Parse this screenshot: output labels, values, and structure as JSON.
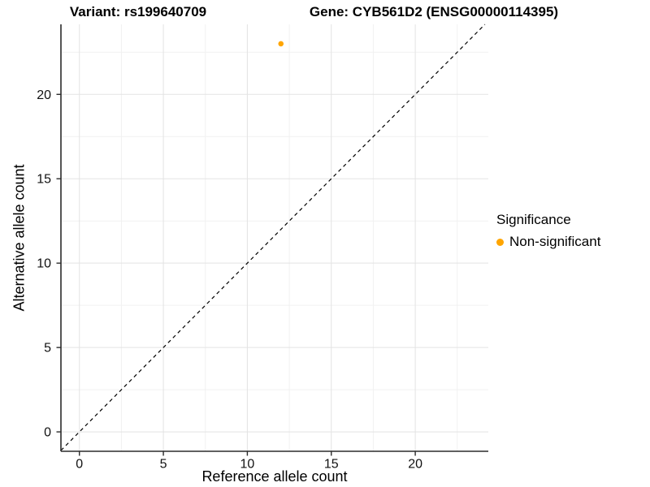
{
  "chart_data": {
    "type": "scatter",
    "titles": {
      "left": "Variant: rs199640709",
      "right": "Gene: CYB561D2 (ENSG00000114395)"
    },
    "xlabel": "Reference allele count",
    "ylabel": "Alternative allele count",
    "x_ticks": [
      0,
      5,
      10,
      15,
      20
    ],
    "y_ticks": [
      0,
      5,
      10,
      15,
      20
    ],
    "x_minor_ticks": [
      2.5,
      7.5,
      12.5,
      17.5,
      22.5
    ],
    "y_minor_ticks": [
      2.5,
      7.5,
      12.5,
      17.5,
      22.5
    ],
    "xlim": [
      -1.1,
      24.35
    ],
    "ylim": [
      -1.15,
      24.15
    ],
    "grid": "major+minor",
    "points": [
      {
        "x": 12,
        "y": 23,
        "significance": "Non-significant"
      }
    ],
    "reference_line": {
      "type": "identity",
      "slope": 1,
      "intercept": 0,
      "style": "dashed",
      "color": "#000000"
    },
    "legend": {
      "title": "Significance",
      "position": "right",
      "entries": [
        {
          "label": "Non-significant",
          "color": "#FFA500"
        }
      ]
    },
    "colors": {
      "point": "#FFA500",
      "grid_major": "#E3E3E3",
      "grid_minor": "#F1F1F1",
      "axis_line": "#2B2B2B",
      "tick_text": "#111111"
    }
  }
}
